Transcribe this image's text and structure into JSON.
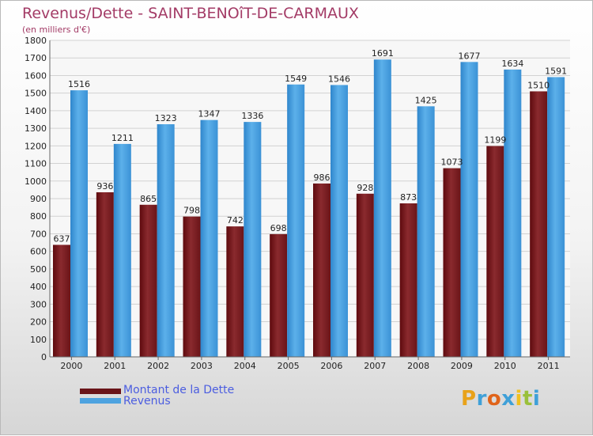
{
  "header": {
    "title": "Revenus/Dette - SAINT-BENOîT-DE-CARMAUX",
    "subtitle": "(en milliers d'€)"
  },
  "legend": {
    "dette_label": "Montant de la Dette",
    "revenus_label": "Revenus"
  },
  "logo": {
    "text": "Proxiti"
  },
  "colors": {
    "dette": "#7b1c1f",
    "revenus": "#4ea3e0",
    "title": "#a33b66",
    "legend_text": "#4b5de0"
  },
  "chart_data": {
    "type": "bar",
    "title": "Revenus/Dette - SAINT-BENOîT-DE-CARMAUX",
    "subtitle": "(en milliers d'€)",
    "categories": [
      "2000",
      "2001",
      "2002",
      "2003",
      "2004",
      "2005",
      "2006",
      "2007",
      "2008",
      "2009",
      "2010",
      "2011"
    ],
    "series": [
      {
        "name": "Montant de la Dette",
        "values": [
          637,
          936,
          865,
          798,
          742,
          698,
          986,
          928,
          873,
          1073,
          1199,
          1510
        ]
      },
      {
        "name": "Revenus",
        "values": [
          1516,
          1211,
          1323,
          1347,
          1336,
          1549,
          1546,
          1691,
          1425,
          1677,
          1634,
          1591
        ]
      }
    ],
    "ylim": [
      0,
      1800
    ],
    "yticks": [
      0,
      100,
      200,
      300,
      400,
      500,
      600,
      700,
      800,
      900,
      1000,
      1100,
      1200,
      1300,
      1400,
      1500,
      1600,
      1700,
      1800
    ],
    "grid": true,
    "legend_position": "bottom-left"
  }
}
